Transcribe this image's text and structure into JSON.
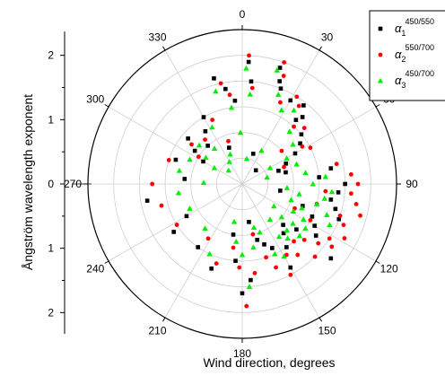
{
  "chart_data": {
    "type": "scatter",
    "projection": "polar",
    "xlabel": "Wind direction, degrees",
    "ylabel": "Ångström wavelength exponent",
    "angle_ticks": [
      "0",
      "30",
      "60",
      "90",
      "120",
      "150",
      "180",
      "210",
      "240",
      "270",
      "300",
      "330"
    ],
    "radial_ticks": [
      "0",
      "1",
      "2",
      "1",
      "0",
      "1",
      "2"
    ],
    "radial_range": [
      0,
      2.4
    ],
    "grid": true,
    "legend": {
      "placement": "top-right",
      "entries": [
        {
          "symbol": "α",
          "subscript": "1",
          "superscript": "450/550",
          "marker": "square",
          "color": "#000000"
        },
        {
          "symbol": "α",
          "subscript": "2",
          "superscript": "550/700",
          "marker": "circle",
          "color": "#ff0000"
        },
        {
          "symbol": "α",
          "subscript": "3",
          "superscript": "450/700",
          "marker": "triangle",
          "color": "#00ee00"
        }
      ]
    },
    "series": [
      {
        "marker": "square",
        "color": "#000000",
        "points": [
          [
            3,
            1.9
          ],
          [
            5,
            1.6
          ],
          [
            18,
            1.9
          ],
          [
            20,
            1.7
          ],
          [
            22,
            1.6
          ],
          [
            30,
            1.5
          ],
          [
            38,
            1.55
          ],
          [
            40,
            1.3
          ],
          [
            42,
            1.4
          ],
          [
            50,
            1.2
          ],
          [
            55,
            1.1
          ],
          [
            60,
            0.95
          ],
          [
            65,
            0.75
          ],
          [
            70,
            0.6
          ],
          [
            75,
            0.7
          ],
          [
            80,
            1.4
          ],
          [
            85,
            1.2
          ],
          [
            90,
            1.6
          ],
          [
            95,
            1.5
          ],
          [
            100,
            1.4
          ],
          [
            105,
            1.5
          ],
          [
            110,
            1.6
          ],
          [
            115,
            1.2
          ],
          [
            120,
            1.3
          ],
          [
            125,
            1.4
          ],
          [
            130,
            1.1
          ],
          [
            135,
            0.9
          ],
          [
            140,
            1.0
          ],
          [
            145,
            1.2
          ],
          [
            150,
            1.5
          ],
          [
            155,
            1.1
          ],
          [
            160,
            1.0
          ],
          [
            165,
            0.9
          ],
          [
            170,
            0.6
          ],
          [
            175,
            1.5
          ],
          [
            180,
            1.7
          ],
          [
            185,
            1.2
          ],
          [
            190,
            0.8
          ],
          [
            200,
            1.4
          ],
          [
            215,
            1.2
          ],
          [
            235,
            1.3
          ],
          [
            240,
            1.0
          ],
          [
            260,
            1.5
          ],
          [
            275,
            0.9
          ],
          [
            290,
            1.1
          ],
          [
            300,
            0.7
          ],
          [
            305,
            0.9
          ],
          [
            310,
            1.1
          ],
          [
            318,
            0.8
          ],
          [
            325,
            1.0
          ],
          [
            330,
            1.2
          ],
          [
            340,
            0.6
          ],
          [
            345,
            1.7
          ],
          [
            350,
            1.5
          ],
          [
            355,
            1.3
          ],
          [
            20,
            0.5
          ],
          [
            45,
            0.3
          ],
          [
            100,
            0.6
          ],
          [
            110,
            1.0
          ],
          [
            130,
            1.8
          ]
        ]
      },
      {
        "marker": "circle",
        "color": "#ff0000",
        "points": [
          [
            3,
            2.0
          ],
          [
            6,
            1.5
          ],
          [
            19,
            2.0
          ],
          [
            21,
            1.8
          ],
          [
            25,
            1.4
          ],
          [
            32,
            1.6
          ],
          [
            36,
            1.5
          ],
          [
            42,
            1.2
          ],
          [
            48,
            1.3
          ],
          [
            58,
            1.1
          ],
          [
            62,
            1.2
          ],
          [
            68,
            0.7
          ],
          [
            78,
            1.5
          ],
          [
            85,
            1.7
          ],
          [
            90,
            1.8
          ],
          [
            95,
            1.7
          ],
          [
            100,
            1.8
          ],
          [
            105,
            1.9
          ],
          [
            108,
            1.6
          ],
          [
            112,
            1.7
          ],
          [
            118,
            1.8
          ],
          [
            122,
            1.6
          ],
          [
            125,
            1.7
          ],
          [
            128,
            1.5
          ],
          [
            132,
            1.3
          ],
          [
            138,
            1.2
          ],
          [
            142,
            1.4
          ],
          [
            148,
            1.3
          ],
          [
            152,
            1.6
          ],
          [
            158,
            1.4
          ],
          [
            162,
            1.2
          ],
          [
            168,
            0.8
          ],
          [
            172,
            1.4
          ],
          [
            178,
            1.9
          ],
          [
            182,
            1.3
          ],
          [
            188,
            1.0
          ],
          [
            198,
            1.3
          ],
          [
            212,
            1.0
          ],
          [
            238,
            1.2
          ],
          [
            255,
            1.3
          ],
          [
            270,
            1.4
          ],
          [
            288,
            1.2
          ],
          [
            302,
            0.8
          ],
          [
            308,
            1.0
          ],
          [
            320,
            0.9
          ],
          [
            335,
            1.1
          ],
          [
            342,
            0.7
          ],
          [
            348,
            1.6
          ],
          [
            352,
            1.4
          ],
          [
            118,
            1.2
          ],
          [
            105,
            1.2
          ],
          [
            95,
            1.3
          ],
          [
            135,
            1.6
          ],
          [
            115,
            0.9
          ],
          [
            50,
            0.8
          ]
        ]
      },
      {
        "marker": "triangle",
        "color": "#00ee00",
        "points": [
          [
            2,
            1.8
          ],
          [
            5,
            1.4
          ],
          [
            17,
            1.85
          ],
          [
            22,
            1.5
          ],
          [
            28,
            1.3
          ],
          [
            35,
            1.4
          ],
          [
            42,
            1.1
          ],
          [
            52,
            1.0
          ],
          [
            60,
            0.8
          ],
          [
            70,
            0.9
          ],
          [
            80,
            1.0
          ],
          [
            85,
            1.3
          ],
          [
            90,
            1.1
          ],
          [
            95,
            1.4
          ],
          [
            100,
            1.3
          ],
          [
            105,
            1.2
          ],
          [
            110,
            1.4
          ],
          [
            112,
            1.0
          ],
          [
            115,
            1.5
          ],
          [
            120,
            1.1
          ],
          [
            125,
            1.2
          ],
          [
            128,
            1.0
          ],
          [
            132,
            1.2
          ],
          [
            136,
            1.0
          ],
          [
            140,
            1.1
          ],
          [
            145,
            1.0
          ],
          [
            150,
            1.3
          ],
          [
            155,
            1.2
          ],
          [
            160,
            0.8
          ],
          [
            165,
            0.7
          ],
          [
            170,
            1.0
          ],
          [
            176,
            1.6
          ],
          [
            180,
            1.1
          ],
          [
            186,
            0.9
          ],
          [
            192,
            0.6
          ],
          [
            205,
            1.2
          ],
          [
            220,
            0.9
          ],
          [
            245,
            0.9
          ],
          [
            262,
            1.0
          ],
          [
            272,
            0.6
          ],
          [
            282,
            1.0
          ],
          [
            295,
            0.9
          ],
          [
            300,
            0.5
          ],
          [
            306,
            0.7
          ],
          [
            312,
            0.9
          ],
          [
            322,
            0.7
          ],
          [
            332,
            1.0
          ],
          [
            338,
            0.5
          ],
          [
            344,
            1.5
          ],
          [
            352,
            1.2
          ],
          [
            358,
            0.8
          ],
          [
            100,
            0.9
          ],
          [
            108,
            0.8
          ],
          [
            118,
            0.9
          ],
          [
            130,
            0.8
          ],
          [
            142,
            0.7
          ],
          [
            60,
            0.5
          ],
          [
            75,
            0.4
          ],
          [
            95,
            0.7
          ],
          [
            125,
            0.6
          ],
          [
            315,
            0.3
          ],
          [
            330,
            0.4
          ],
          [
            30,
            0.6
          ],
          [
            10,
            0.4
          ]
        ]
      }
    ]
  }
}
